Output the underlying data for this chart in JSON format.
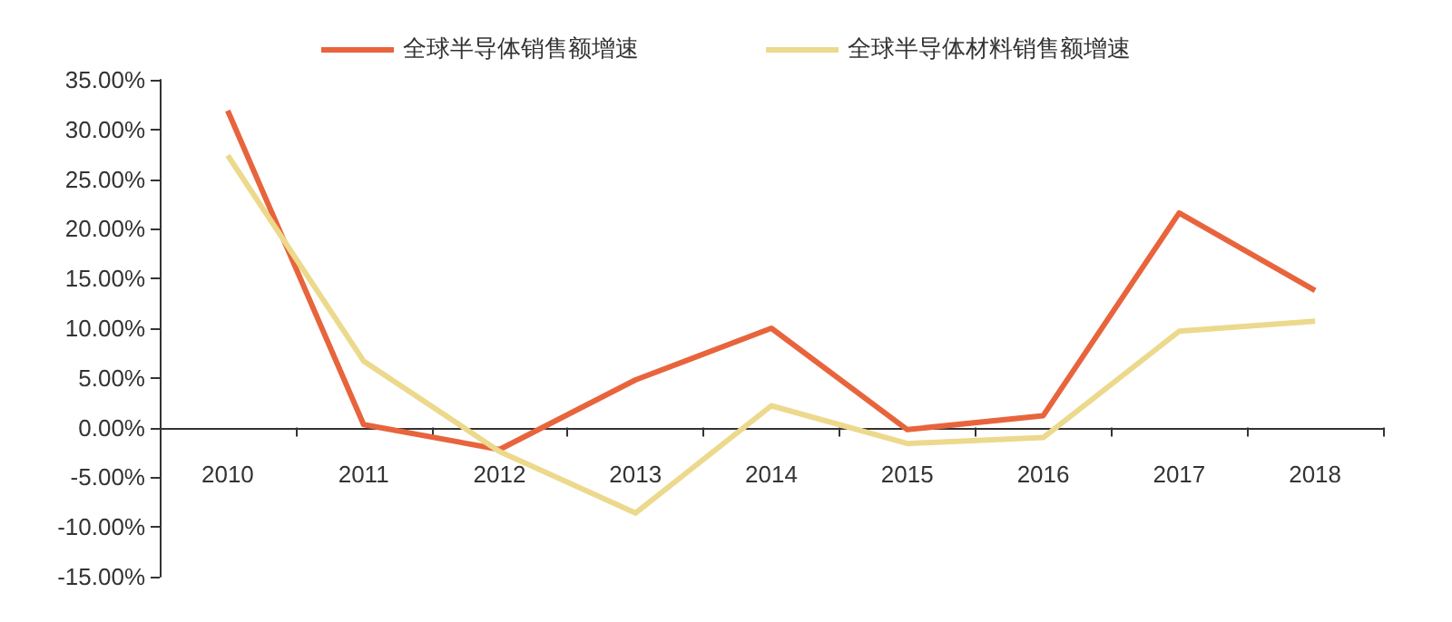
{
  "chart_data": {
    "type": "line",
    "categories": [
      "2010",
      "2011",
      "2012",
      "2013",
      "2014",
      "2015",
      "2016",
      "2017",
      "2018"
    ],
    "series": [
      {
        "name": "全球半导体销售额增速",
        "color": "#e8643c",
        "values": [
          31.9,
          0.3,
          -2.2,
          4.8,
          10.0,
          -0.2,
          1.2,
          21.6,
          13.8
        ]
      },
      {
        "name": "全球半导体材料销售额增速",
        "color": "#ecd98c",
        "values": [
          27.4,
          6.7,
          -2.4,
          -8.6,
          2.2,
          -1.6,
          -1.0,
          9.7,
          10.7
        ]
      }
    ],
    "ylim": [
      -15,
      35
    ],
    "yticks": [
      {
        "value": -15,
        "label": "-15.00%"
      },
      {
        "value": -10,
        "label": "-10.00%"
      },
      {
        "value": -5,
        "label": "-5.00%"
      },
      {
        "value": 0,
        "label": "0.00%"
      },
      {
        "value": 5,
        "label": "5.00%"
      },
      {
        "value": 10,
        "label": "10.00%"
      },
      {
        "value": 15,
        "label": "15.00%"
      },
      {
        "value": 20,
        "label": "20.00%"
      },
      {
        "value": 25,
        "label": "25.00%"
      },
      {
        "value": 30,
        "label": "30.00%"
      },
      {
        "value": 35,
        "label": "35.00%"
      }
    ],
    "legend": "top",
    "marker": "none",
    "line_style": "solid"
  }
}
